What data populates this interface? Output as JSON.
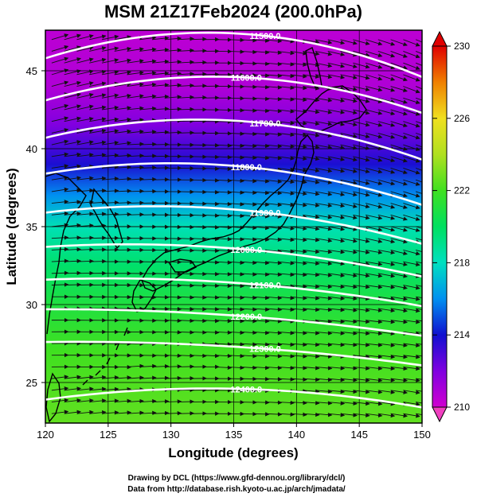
{
  "chart_data": {
    "type": "heatmap",
    "title": "MSM 21Z17Feb2024 (200.0hPa)",
    "xlabel": "Longitude (degrees)",
    "ylabel": "Latitude  (degrees)",
    "xlim": [
      120,
      150
    ],
    "ylim": [
      22.4,
      47.6
    ],
    "x_ticks": [
      120,
      125,
      130,
      135,
      140,
      145,
      150
    ],
    "y_ticks": [
      25,
      30,
      35,
      40,
      45
    ],
    "colorbar": {
      "min": 210,
      "max": 230,
      "ticks": [
        210,
        214,
        218,
        222,
        226,
        230
      ],
      "stops": [
        {
          "value": 210,
          "color": "#d000d0"
        },
        {
          "value": 212,
          "color": "#8000e0"
        },
        {
          "value": 214,
          "color": "#1010d0"
        },
        {
          "value": 216,
          "color": "#0090f0"
        },
        {
          "value": 218,
          "color": "#00e0c0"
        },
        {
          "value": 220,
          "color": "#00e060"
        },
        {
          "value": 222,
          "color": "#40e020"
        },
        {
          "value": 224,
          "color": "#b0e020"
        },
        {
          "value": 226,
          "color": "#f0e020"
        },
        {
          "value": 228,
          "color": "#f08000"
        },
        {
          "value": 230,
          "color": "#e00000"
        }
      ]
    },
    "field_by_latitude": [
      {
        "lat": 47.6,
        "value": 210.5
      },
      {
        "lat": 44,
        "value": 210.8
      },
      {
        "lat": 41.5,
        "value": 212
      },
      {
        "lat": 39,
        "value": 213.8
      },
      {
        "lat": 37,
        "value": 216
      },
      {
        "lat": 35,
        "value": 218.2
      },
      {
        "lat": 32.5,
        "value": 219.8
      },
      {
        "lat": 30,
        "value": 221
      },
      {
        "lat": 27,
        "value": 222
      },
      {
        "lat": 22.4,
        "value": 222.6
      }
    ],
    "contours": [
      {
        "label": "11500.0",
        "lat_at_120": 45.8,
        "lat_at_135": 47.4,
        "lat_at_150": 44.6
      },
      {
        "label": "11600.0",
        "lat_at_120": 43.1,
        "lat_at_135": 44.6,
        "lat_at_150": 42.3
      },
      {
        "label": "11700.0",
        "lat_at_120": 40.7,
        "lat_at_135": 41.8,
        "lat_at_150": 39.3
      },
      {
        "label": "11800.0",
        "lat_at_120": 38.4,
        "lat_at_135": 38.9,
        "lat_at_150": 36.4
      },
      {
        "label": "11900.0",
        "lat_at_120": 35.9,
        "lat_at_135": 36.1,
        "lat_at_150": 33.9
      },
      {
        "label": "12000.0",
        "lat_at_120": 33.7,
        "lat_at_135": 33.6,
        "lat_at_150": 31.8
      },
      {
        "label": "12100.0",
        "lat_at_120": 31.6,
        "lat_at_135": 31.4,
        "lat_at_150": 29.9
      },
      {
        "label": "12200.0",
        "lat_at_120": 29.7,
        "lat_at_135": 29.3,
        "lat_at_150": 28.0
      },
      {
        "label": "12300.0",
        "lat_at_120": 27.6,
        "lat_at_135": 27.3,
        "lat_at_150": 26.1
      },
      {
        "label": "12400.0",
        "lat_at_120": 23.9,
        "lat_at_135": 24.6,
        "lat_at_150": 23.4
      }
    ],
    "wind": "westerly",
    "grid": true
  },
  "footer": {
    "line1": "Drawing by DCL (https://www.gfd-dennou.org/library/dcl/)",
    "line2": "Data from http://database.rish.kyoto-u.ac.jp/arch/jmadata/"
  }
}
